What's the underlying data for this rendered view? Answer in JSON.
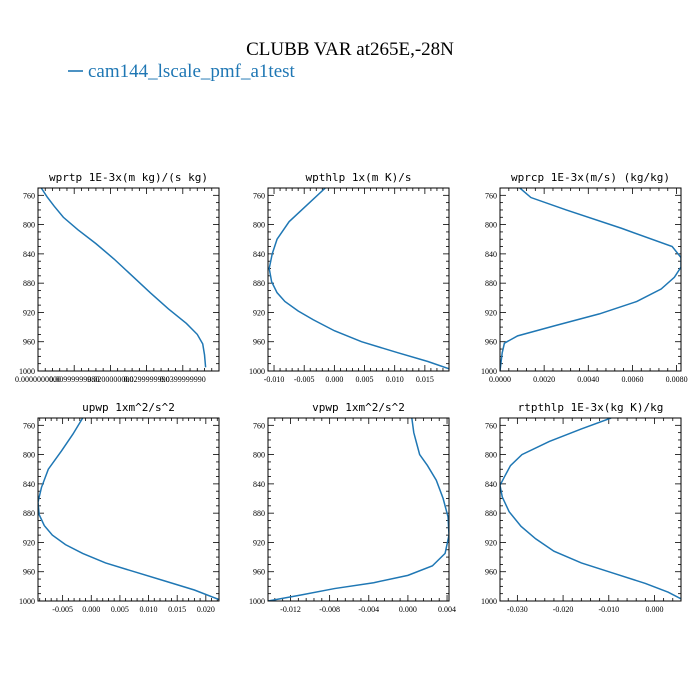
{
  "title": "CLUBB VAR at265E,-28N",
  "legend": {
    "label": "cam144_lscale_pmf_a1test",
    "color": "#1f77b4"
  },
  "chart_data": [
    {
      "type": "line",
      "title": "wprtp  1E-3x(m kg)/(s kg)",
      "xlim": [
        0.0,
        0.05
      ],
      "ylim": [
        1000,
        750
      ],
      "x_ticks": [
        0.0,
        0.01,
        0.02,
        0.03,
        0.04
      ],
      "x_tick_labels": [
        "0.0000000000",
        "0.00999999980",
        "0.0200000000",
        "0.0299999990",
        "0.0399999990"
      ],
      "y_ticks": [
        760,
        800,
        840,
        880,
        920,
        960,
        1000
      ],
      "series": [
        {
          "x": [
            0.0009,
            0.0025,
            0.0045,
            0.007,
            0.011,
            0.016,
            0.021,
            0.026,
            0.031,
            0.036,
            0.041,
            0.044,
            0.0455,
            0.046,
            0.0463
          ],
          "y": [
            750,
            762,
            775,
            790,
            807,
            826,
            847,
            870,
            893,
            915,
            935,
            950,
            963,
            978,
            995
          ]
        }
      ]
    },
    {
      "type": "line",
      "title": "wpthlp  1x(m K)/s",
      "xlim": [
        -0.011,
        0.019
      ],
      "ylim": [
        1000,
        750
      ],
      "x_ticks": [
        -0.01,
        -0.005,
        0.0,
        0.005,
        0.01,
        0.015
      ],
      "x_tick_labels": [
        "-0.010",
        "-0.005",
        "0.000",
        "0.005",
        "0.010",
        "0.015"
      ],
      "y_ticks": [
        760,
        800,
        840,
        880,
        920,
        960,
        1000
      ],
      "series": [
        {
          "x": [
            -0.0015,
            -0.0045,
            -0.0075,
            -0.0095,
            -0.0103,
            -0.0108,
            -0.0104,
            -0.0095,
            -0.0082,
            -0.006,
            -0.0035,
            0.0,
            0.0045,
            0.0105,
            0.0155,
            0.019
          ],
          "y": [
            750,
            773,
            796,
            820,
            840,
            860,
            878,
            893,
            905,
            918,
            930,
            945,
            960,
            975,
            987,
            997
          ]
        }
      ]
    },
    {
      "type": "line",
      "title": "wprcp  1E-3x(m/s) (kg/kg)",
      "xlim": [
        0.0,
        0.0082
      ],
      "ylim": [
        1000,
        750
      ],
      "x_ticks": [
        0.0,
        0.002,
        0.004,
        0.006,
        0.008
      ],
      "x_tick_labels": [
        "0.0000",
        "0.0020",
        "0.0040",
        "0.0060",
        "0.0080"
      ],
      "y_ticks": [
        760,
        800,
        840,
        880,
        920,
        960,
        1000
      ],
      "series": [
        {
          "x": [
            0.0009,
            0.0014,
            0.003,
            0.0055,
            0.0078,
            0.0082,
            0.0082,
            0.0079,
            0.0073,
            0.0062,
            0.0045,
            0.0025,
            0.0008,
            0.0002,
            0.0001,
            0.0
          ],
          "y": [
            750,
            763,
            780,
            805,
            830,
            845,
            858,
            872,
            888,
            905,
            922,
            938,
            952,
            962,
            975,
            1000
          ]
        }
      ]
    },
    {
      "type": "line",
      "title": "upwp  1xm^2/s^2",
      "xlim": [
        -0.0093,
        0.0223
      ],
      "ylim": [
        1000,
        750
      ],
      "x_ticks": [
        -0.005,
        0.0,
        0.005,
        0.01,
        0.015,
        0.02
      ],
      "x_tick_labels": [
        "-0.005",
        "0.000",
        "0.005",
        "0.010",
        "0.015",
        "0.020"
      ],
      "y_ticks": [
        760,
        800,
        840,
        880,
        920,
        960,
        1000
      ],
      "series": [
        {
          "x": [
            -0.0015,
            -0.0032,
            -0.0052,
            -0.0075,
            -0.0087,
            -0.0093,
            -0.0091,
            -0.0082,
            -0.0068,
            -0.0045,
            -0.0015,
            0.0025,
            0.0075,
            0.013,
            0.018,
            0.0223
          ],
          "y": [
            750,
            772,
            795,
            820,
            845,
            865,
            882,
            897,
            910,
            923,
            935,
            948,
            960,
            973,
            985,
            998
          ]
        }
      ]
    },
    {
      "type": "line",
      "title": "vpwp  1xm^2/s^2",
      "xlim": [
        -0.0143,
        0.0042
      ],
      "ylim": [
        1000,
        750
      ],
      "x_ticks": [
        -0.012,
        -0.008,
        -0.004,
        0.0,
        0.004
      ],
      "x_tick_labels": [
        "-0.012",
        "-0.008",
        "-0.004",
        "0.000",
        "0.004"
      ],
      "y_ticks": [
        760,
        800,
        840,
        880,
        920,
        960,
        1000
      ],
      "series": [
        {
          "x": [
            0.0004,
            0.0006,
            0.0009,
            0.0012,
            0.002,
            0.0029,
            0.0036,
            0.0041,
            0.0042,
            0.0038,
            0.0025,
            0.0,
            -0.0035,
            -0.0075,
            -0.011,
            -0.0143
          ],
          "y": [
            750,
            770,
            785,
            800,
            815,
            835,
            860,
            885,
            910,
            935,
            952,
            965,
            975,
            983,
            992,
            1000
          ]
        }
      ]
    },
    {
      "type": "line",
      "title": "rtpthlp  1E-3x(kg K)/kg",
      "xlim": [
        -0.0338,
        0.0058
      ],
      "ylim": [
        1000,
        750
      ],
      "x_ticks": [
        -0.03,
        -0.02,
        -0.01,
        0.0
      ],
      "x_tick_labels": [
        "-0.030",
        "-0.020",
        "-0.010",
        "0.000"
      ],
      "y_ticks": [
        760,
        800,
        840,
        880,
        920,
        960,
        1000
      ],
      "series": [
        {
          "x": [
            -0.0095,
            -0.016,
            -0.023,
            -0.029,
            -0.0315,
            -0.0328,
            -0.0338,
            -0.0333,
            -0.0318,
            -0.0292,
            -0.026,
            -0.022,
            -0.016,
            -0.009,
            -0.002,
            0.003,
            0.0058
          ],
          "y": [
            750,
            765,
            782,
            800,
            815,
            830,
            842,
            858,
            878,
            898,
            915,
            932,
            948,
            962,
            976,
            988,
            997
          ]
        }
      ]
    }
  ]
}
